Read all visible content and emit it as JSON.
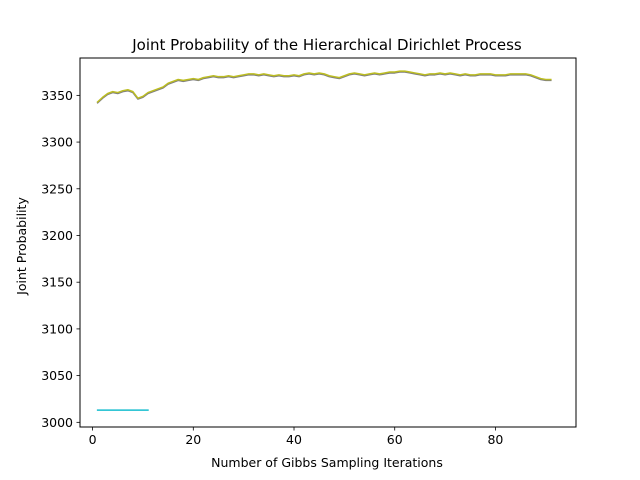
{
  "chart_data": {
    "type": "line",
    "title": "Joint Probability of the Hierarchical Dirichlet Process",
    "xlabel": "Number of Gibbs Sampling Iterations",
    "ylabel": "Joint Probability",
    "xlim": [
      -2.5,
      96
    ],
    "ylim": [
      2995,
      3390
    ],
    "x_ticks": [
      0,
      20,
      40,
      60,
      80
    ],
    "x_tick_labels": [
      "0",
      "20",
      "40",
      "60",
      "80"
    ],
    "y_ticks": [
      3000,
      3050,
      3100,
      3150,
      3200,
      3250,
      3300,
      3350
    ],
    "y_tick_labels": [
      "3000",
      "3050",
      "3100",
      "3150",
      "3200",
      "3250",
      "3300",
      "3350"
    ],
    "grid": false,
    "legend": null,
    "series": [
      {
        "name": "run-1",
        "color": "#7f7f7f",
        "x": [
          1,
          2,
          3,
          4,
          5,
          6,
          7,
          8,
          9,
          10,
          11,
          12,
          13,
          14,
          15,
          16,
          17,
          18,
          19,
          20,
          21,
          22,
          23,
          24,
          25,
          26,
          27,
          28,
          29,
          30,
          31,
          32,
          33,
          34,
          35,
          36,
          37,
          38,
          39,
          40,
          41,
          42,
          43,
          44,
          45,
          46,
          47,
          48,
          49,
          50,
          51,
          52,
          53,
          54,
          55,
          56,
          57,
          58,
          59,
          60,
          61,
          62,
          63,
          64,
          65,
          66,
          67,
          68,
          69,
          70,
          71,
          72,
          73,
          74,
          75,
          76,
          77,
          78,
          79,
          80,
          81,
          82,
          83,
          84,
          85,
          86,
          87,
          88,
          89,
          90,
          91
        ],
        "values": [
          3342,
          3347,
          3351,
          3353,
          3352,
          3354,
          3355,
          3353,
          3346,
          3348,
          3352,
          3354,
          3356,
          3358,
          3362,
          3364,
          3366,
          3365,
          3366,
          3367,
          3366,
          3368,
          3369,
          3370,
          3369,
          3369,
          3370,
          3369,
          3370,
          3371,
          3372,
          3372,
          3371,
          3372,
          3371,
          3370,
          3371,
          3370,
          3370,
          3371,
          3370,
          3372,
          3373,
          3372,
          3373,
          3372,
          3370,
          3369,
          3368,
          3370,
          3372,
          3373,
          3372,
          3371,
          3372,
          3373,
          3372,
          3373,
          3374,
          3374,
          3375,
          3375,
          3374,
          3373,
          3372,
          3371,
          3372,
          3372,
          3373,
          3372,
          3373,
          3372,
          3371,
          3372,
          3371,
          3371,
          3372,
          3372,
          3372,
          3371,
          3371,
          3371,
          3372,
          3372,
          3372,
          3372,
          3371,
          3369,
          3367,
          3366,
          3366
        ]
      },
      {
        "name": "run-2",
        "color": "#bcbd22",
        "x": [
          1,
          2,
          3,
          4,
          5,
          6,
          7,
          8,
          9,
          10,
          11,
          12,
          13,
          14,
          15,
          16,
          17,
          18,
          19,
          20,
          21,
          22,
          23,
          24,
          25,
          26,
          27,
          28,
          29,
          30,
          31,
          32,
          33,
          34,
          35,
          36,
          37,
          38,
          39,
          40,
          41,
          42,
          43,
          44,
          45,
          46,
          47,
          48,
          49,
          50,
          51,
          52,
          53,
          54,
          55,
          56,
          57,
          58,
          59,
          60,
          61,
          62,
          63,
          64,
          65,
          66,
          67,
          68,
          69,
          70,
          71,
          72,
          73,
          74,
          75,
          76,
          77,
          78,
          79,
          80,
          81,
          82,
          83,
          84,
          85,
          86,
          87,
          88,
          89,
          90,
          91
        ],
        "values": [
          3343,
          3348,
          3352,
          3354,
          3353,
          3355,
          3356,
          3354,
          3347,
          3349,
          3353,
          3355,
          3357,
          3359,
          3363,
          3365,
          3367,
          3366,
          3367,
          3368,
          3367,
          3369,
          3370,
          3371,
          3370,
          3370,
          3371,
          3370,
          3371,
          3372,
          3373,
          3373,
          3372,
          3373,
          3372,
          3371,
          3372,
          3371,
          3371,
          3372,
          3371,
          3373,
          3374,
          3373,
          3374,
          3373,
          3371,
          3370,
          3369,
          3371,
          3373,
          3374,
          3373,
          3372,
          3373,
          3374,
          3373,
          3374,
          3375,
          3375,
          3376,
          3376,
          3375,
          3374,
          3373,
          3372,
          3373,
          3373,
          3374,
          3373,
          3374,
          3373,
          3372,
          3373,
          3372,
          3372,
          3373,
          3373,
          3373,
          3372,
          3372,
          3372,
          3373,
          3373,
          3373,
          3373,
          3372,
          3370,
          3368,
          3367,
          3367
        ]
      },
      {
        "name": "run-3",
        "color": "#17becf",
        "x": [
          1,
          2,
          3,
          4,
          5,
          6,
          7,
          8,
          9,
          10,
          11
        ],
        "values": [
          3013,
          3013,
          3013,
          3013,
          3013,
          3013,
          3013,
          3013,
          3013,
          3013,
          3013
        ]
      }
    ]
  }
}
